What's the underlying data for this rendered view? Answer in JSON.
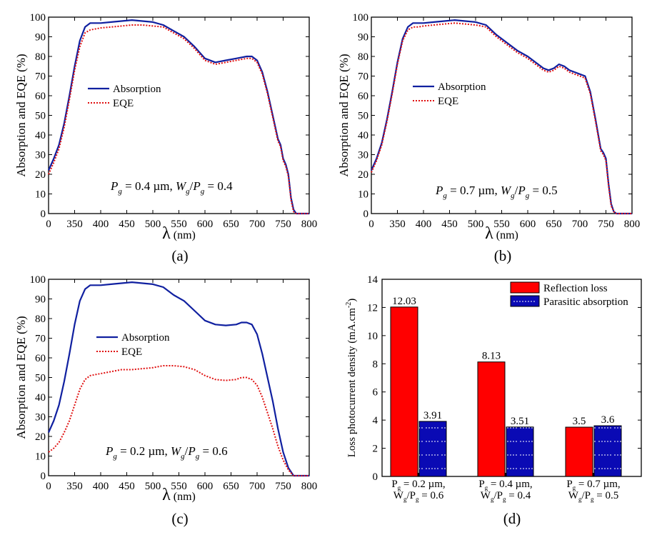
{
  "chart_data": [
    {
      "type": "line",
      "panel": "(a)",
      "ylabel": "Absorption and EQE (%)",
      "xlabel_symbol": "λ",
      "xlabel_unit": "(nm)",
      "xlim": [
        300,
        800
      ],
      "ylim": [
        0,
        100
      ],
      "x_ticks": [
        "0",
        "350",
        "400",
        "450",
        "500",
        "550",
        "600",
        "650",
        "700",
        "750",
        "800"
      ],
      "y_ticks": [
        "0",
        "10",
        "20",
        "30",
        "40",
        "50",
        "60",
        "70",
        "80",
        "90",
        "100"
      ],
      "legend": [
        "Absorption",
        "EQE"
      ],
      "annotation": {
        "p": "P",
        "p_sub": "g",
        "p_val": " = 0.4 µm,  ",
        "w": "W",
        "w_sub": "g",
        "slash": "/",
        "p2": "P",
        "p2_sub": "g",
        "ratio": " = 0.4"
      },
      "series": [
        {
          "name": "Absorption",
          "color": "#1020a0",
          "style": "solid",
          "x": [
            300,
            310,
            320,
            330,
            340,
            350,
            360,
            370,
            380,
            390,
            400,
            420,
            440,
            460,
            480,
            500,
            520,
            540,
            560,
            580,
            600,
            620,
            640,
            660,
            680,
            690,
            700,
            710,
            720,
            730,
            740,
            745,
            750,
            755,
            760,
            765,
            770,
            775,
            780,
            790,
            800
          ],
          "y": [
            22,
            28,
            35,
            46,
            60,
            75,
            88,
            95,
            97,
            97,
            97,
            97.5,
            98,
            98.5,
            98,
            97.5,
            96,
            93,
            90,
            85,
            79,
            77,
            78,
            79,
            80,
            80,
            78,
            72,
            62,
            50,
            38,
            35,
            28,
            25,
            20,
            8,
            2,
            0,
            0,
            0,
            0
          ]
        },
        {
          "name": "EQE",
          "color": "#e01010",
          "style": "dotted",
          "x": [
            300,
            310,
            320,
            330,
            340,
            350,
            360,
            370,
            380,
            390,
            400,
            420,
            440,
            460,
            480,
            500,
            520,
            540,
            560,
            580,
            600,
            620,
            640,
            660,
            680,
            690,
            700,
            710,
            720,
            730,
            740,
            745,
            750,
            755,
            760,
            765,
            770,
            775,
            780,
            790,
            800
          ],
          "y": [
            20,
            26,
            33,
            44,
            58,
            73,
            85,
            92,
            93.5,
            94,
            94.5,
            95,
            95.5,
            96,
            96,
            95.5,
            95,
            92,
            89,
            84,
            78,
            76,
            77,
            78,
            79,
            79,
            77,
            71,
            61,
            49,
            37,
            34,
            27,
            24,
            19,
            7,
            1,
            0,
            0,
            0,
            0
          ]
        }
      ]
    },
    {
      "type": "line",
      "panel": "(b)",
      "ylabel": "Absorption and EQE (%)",
      "xlabel_symbol": "λ",
      "xlabel_unit": "(nm)",
      "xlim": [
        300,
        800
      ],
      "ylim": [
        0,
        100
      ],
      "x_ticks": [
        "0",
        "350",
        "400",
        "450",
        "500",
        "550",
        "600",
        "650",
        "700",
        "750",
        "800"
      ],
      "y_ticks": [
        "0",
        "10",
        "20",
        "30",
        "40",
        "50",
        "60",
        "70",
        "80",
        "90",
        "100"
      ],
      "legend": [
        "Absorption",
        "EQE"
      ],
      "annotation": {
        "p": "P",
        "p_sub": "g",
        "p_val": " = 0.7 µm,  ",
        "w": "W",
        "w_sub": "g",
        "slash": "/",
        "p2": "P",
        "p2_sub": "g",
        "ratio": " = 0.5"
      },
      "series": [
        {
          "name": "Absorption",
          "color": "#1020a0",
          "style": "solid",
          "x": [
            300,
            310,
            320,
            330,
            340,
            350,
            360,
            370,
            380,
            390,
            400,
            420,
            440,
            460,
            480,
            500,
            520,
            540,
            560,
            580,
            600,
            620,
            630,
            640,
            650,
            660,
            670,
            680,
            690,
            700,
            710,
            720,
            730,
            740,
            745,
            750,
            755,
            760,
            765,
            770,
            780,
            790,
            800
          ],
          "y": [
            22,
            28,
            36,
            48,
            62,
            77,
            89,
            95,
            97,
            97,
            97,
            97.5,
            98,
            98.5,
            98,
            97.5,
            96,
            91,
            87,
            83,
            80,
            76,
            74,
            73,
            74,
            76,
            75,
            73,
            72,
            71,
            70,
            62,
            48,
            33,
            31,
            28,
            15,
            5,
            1,
            0,
            0,
            0,
            0
          ]
        },
        {
          "name": "EQE",
          "color": "#e01010",
          "style": "dotted",
          "x": [
            300,
            310,
            320,
            330,
            340,
            350,
            360,
            370,
            380,
            390,
            400,
            420,
            440,
            460,
            480,
            500,
            520,
            540,
            560,
            580,
            600,
            620,
            630,
            640,
            650,
            660,
            670,
            680,
            690,
            700,
            710,
            720,
            730,
            740,
            745,
            750,
            755,
            760,
            765,
            770,
            780,
            790,
            800
          ],
          "y": [
            21,
            27,
            35,
            47,
            61,
            76,
            88,
            93.5,
            95,
            95,
            95.5,
            96,
            96.5,
            97,
            96.5,
            96,
            95,
            90,
            86,
            82,
            79,
            75,
            73,
            72,
            73,
            75,
            74,
            72,
            71,
            70,
            69,
            61,
            47,
            32,
            30,
            27,
            14,
            4,
            1,
            0,
            0,
            0,
            0
          ]
        }
      ]
    },
    {
      "type": "line",
      "panel": "(c)",
      "ylabel": "Absorption and EQE (%)",
      "xlabel_symbol": "λ",
      "xlabel_unit": "(nm)",
      "xlim": [
        300,
        800
      ],
      "ylim": [
        0,
        100
      ],
      "x_ticks": [
        "0",
        "350",
        "400",
        "450",
        "500",
        "550",
        "600",
        "650",
        "700",
        "750",
        "800"
      ],
      "y_ticks": [
        "0",
        "10",
        "20",
        "30",
        "40",
        "50",
        "60",
        "70",
        "80",
        "90",
        "100"
      ],
      "legend": [
        "Absorption",
        "EQE"
      ],
      "annotation": {
        "p": "P",
        "p_sub": "g",
        "p_val": " = 0.2 µm,  ",
        "w": "W",
        "w_sub": "g",
        "slash": "/",
        "p2": "P",
        "p2_sub": "g",
        "ratio": " = 0.6"
      },
      "series": [
        {
          "name": "Absorption",
          "color": "#1020a0",
          "style": "solid",
          "x": [
            300,
            310,
            320,
            330,
            340,
            350,
            360,
            370,
            380,
            390,
            400,
            420,
            440,
            460,
            480,
            500,
            520,
            540,
            560,
            580,
            600,
            620,
            640,
            660,
            670,
            680,
            690,
            700,
            710,
            720,
            730,
            740,
            750,
            760,
            770,
            780,
            790,
            800
          ],
          "y": [
            22,
            28,
            36,
            48,
            62,
            77,
            89,
            95,
            97,
            97,
            97,
            97.5,
            98,
            98.5,
            98,
            97.5,
            96,
            92,
            89,
            84,
            79,
            77,
            76.5,
            77,
            78,
            78,
            77,
            72,
            62,
            50,
            38,
            24,
            12,
            4,
            0,
            0,
            0,
            0
          ]
        },
        {
          "name": "EQE",
          "color": "#e01010",
          "style": "dotted",
          "x": [
            300,
            310,
            320,
            330,
            340,
            350,
            360,
            370,
            380,
            390,
            400,
            420,
            440,
            460,
            480,
            500,
            520,
            540,
            560,
            580,
            600,
            620,
            640,
            660,
            670,
            680,
            690,
            700,
            710,
            720,
            730,
            740,
            750,
            760,
            770,
            780,
            790,
            800
          ],
          "y": [
            12,
            14,
            17,
            22,
            28,
            36,
            44,
            49,
            51,
            51.5,
            52,
            53,
            54,
            54,
            54.5,
            55,
            56,
            56,
            55.5,
            54,
            51,
            49,
            48.5,
            49,
            50,
            50,
            49,
            46,
            40,
            32,
            24,
            15,
            8,
            3,
            0,
            0,
            0,
            0
          ]
        }
      ]
    },
    {
      "type": "bar",
      "panel": "(d)",
      "ylabel": "Loss photocurrent density (mA.cm",
      "ylabel_sup": "-2",
      "ylabel_close": ")",
      "ylim": [
        0,
        14
      ],
      "y_ticks": [
        "0",
        "2",
        "4",
        "6",
        "8",
        "10",
        "12",
        "14"
      ],
      "categories": [
        {
          "l1": "P",
          "l1_sub": "g",
          "l1_rest": " = 0.2 µm,",
          "l2": "W",
          "l2_sub": "g",
          "l2_mid": "/P",
          "l2_sub2": "g",
          "l2_rest": " = 0.6"
        },
        {
          "l1": "P",
          "l1_sub": "g",
          "l1_rest": " = 0.4 µm,",
          "l2": "W",
          "l2_sub": "g",
          "l2_mid": "/P",
          "l2_sub2": "g",
          "l2_rest": " = 0.4"
        },
        {
          "l1": "P",
          "l1_sub": "g",
          "l1_rest": " = 0.7 µm,",
          "l2": "W",
          "l2_sub": "g",
          "l2_mid": "/P",
          "l2_sub2": "g",
          "l2_rest": " = 0.5"
        }
      ],
      "series": [
        {
          "name": "Reflection loss",
          "color": "#ff0000",
          "values": [
            12.03,
            8.13,
            3.5
          ],
          "labels": [
            "12.03",
            "8.13",
            "3.5"
          ]
        },
        {
          "name": "Parasitic absorption",
          "color": "#0a0ab4",
          "values": [
            3.91,
            3.51,
            3.6
          ],
          "labels": [
            "3.91",
            "3.51",
            "3.6"
          ]
        }
      ]
    }
  ]
}
